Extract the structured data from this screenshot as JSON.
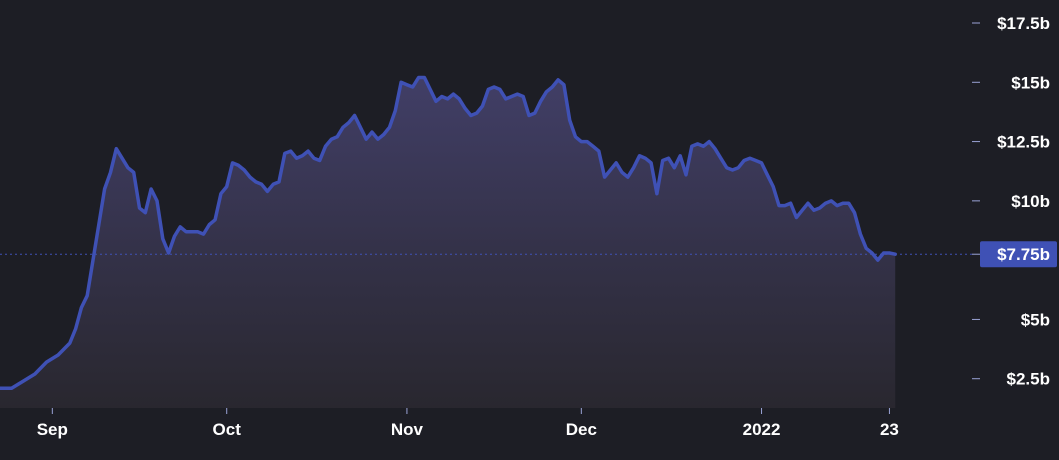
{
  "colors": {
    "background": "#1d1e25",
    "line": "#3f51b5",
    "area_top": "#43406a",
    "area_bottom": "#2a2830",
    "current_badge": "#3f51b5",
    "text": "#ffffff"
  },
  "chart_data": {
    "type": "area",
    "title": "",
    "xlabel": "",
    "ylabel": "",
    "ylim": [
      0,
      17.5
    ],
    "y_ticks": [
      {
        "value": 17.5,
        "label": "$17.5b"
      },
      {
        "value": 15,
        "label": "$15b"
      },
      {
        "value": 12.5,
        "label": "$12.5b"
      },
      {
        "value": 10,
        "label": "$10b"
      },
      {
        "value": 5,
        "label": "$5b"
      },
      {
        "value": 2.5,
        "label": "$2.5b"
      }
    ],
    "x_ticks": [
      {
        "t": 9,
        "label": "Sep"
      },
      {
        "t": 39,
        "label": "Oct"
      },
      {
        "t": 70,
        "label": "Nov"
      },
      {
        "t": 100,
        "label": "Dec"
      },
      {
        "t": 131,
        "label": "2022"
      },
      {
        "t": 153,
        "label": "23"
      }
    ],
    "t_range": [
      0,
      166
    ],
    "current": {
      "value": 7.75,
      "label": "$7.75b"
    },
    "grid": false,
    "legend": "none",
    "series": [
      {
        "points": [
          [
            0,
            2.1
          ],
          [
            2,
            2.1
          ],
          [
            4,
            2.4
          ],
          [
            6,
            2.7
          ],
          [
            8,
            3.2
          ],
          [
            10,
            3.5
          ],
          [
            12,
            4.0
          ],
          [
            13,
            4.6
          ],
          [
            14,
            5.5
          ],
          [
            15,
            6.0
          ],
          [
            16,
            7.5
          ],
          [
            17,
            9.0
          ],
          [
            18,
            10.5
          ],
          [
            19,
            11.2
          ],
          [
            20,
            12.2
          ],
          [
            21,
            11.8
          ],
          [
            22,
            11.4
          ],
          [
            23,
            11.2
          ],
          [
            24,
            9.7
          ],
          [
            25,
            9.5
          ],
          [
            26,
            10.5
          ],
          [
            27,
            10.0
          ],
          [
            28,
            8.4
          ],
          [
            29,
            7.8
          ],
          [
            30,
            8.5
          ],
          [
            31,
            8.9
          ],
          [
            32,
            8.7
          ],
          [
            33,
            8.7
          ],
          [
            34,
            8.7
          ],
          [
            35,
            8.6
          ],
          [
            36,
            9.0
          ],
          [
            37,
            9.2
          ],
          [
            38,
            10.3
          ],
          [
            39,
            10.6
          ],
          [
            40,
            11.6
          ],
          [
            41,
            11.5
          ],
          [
            42,
            11.3
          ],
          [
            43,
            11.0
          ],
          [
            44,
            10.8
          ],
          [
            45,
            10.7
          ],
          [
            46,
            10.4
          ],
          [
            47,
            10.7
          ],
          [
            48,
            10.8
          ],
          [
            49,
            12.0
          ],
          [
            50,
            12.1
          ],
          [
            51,
            11.8
          ],
          [
            52,
            11.9
          ],
          [
            53,
            12.1
          ],
          [
            54,
            11.8
          ],
          [
            55,
            11.7
          ],
          [
            56,
            12.3
          ],
          [
            57,
            12.6
          ],
          [
            58,
            12.7
          ],
          [
            59,
            13.1
          ],
          [
            60,
            13.3
          ],
          [
            61,
            13.6
          ],
          [
            62,
            13.1
          ],
          [
            63,
            12.6
          ],
          [
            64,
            12.9
          ],
          [
            65,
            12.6
          ],
          [
            66,
            12.8
          ],
          [
            67,
            13.1
          ],
          [
            68,
            13.8
          ],
          [
            69,
            15.0
          ],
          [
            70,
            14.9
          ],
          [
            71,
            14.8
          ],
          [
            72,
            15.2
          ],
          [
            73,
            15.2
          ],
          [
            74,
            14.7
          ],
          [
            75,
            14.2
          ],
          [
            76,
            14.4
          ],
          [
            77,
            14.3
          ],
          [
            78,
            14.5
          ],
          [
            79,
            14.3
          ],
          [
            80,
            13.9
          ],
          [
            81,
            13.6
          ],
          [
            82,
            13.7
          ],
          [
            83,
            14.0
          ],
          [
            84,
            14.7
          ],
          [
            85,
            14.8
          ],
          [
            86,
            14.7
          ],
          [
            87,
            14.3
          ],
          [
            88,
            14.4
          ],
          [
            89,
            14.5
          ],
          [
            90,
            14.4
          ],
          [
            91,
            13.6
          ],
          [
            92,
            13.7
          ],
          [
            93,
            14.2
          ],
          [
            94,
            14.6
          ],
          [
            95,
            14.8
          ],
          [
            96,
            15.1
          ],
          [
            97,
            14.9
          ],
          [
            98,
            13.4
          ],
          [
            99,
            12.7
          ],
          [
            100,
            12.5
          ],
          [
            101,
            12.5
          ],
          [
            102,
            12.3
          ],
          [
            103,
            12.1
          ],
          [
            104,
            11.0
          ],
          [
            105,
            11.3
          ],
          [
            106,
            11.6
          ],
          [
            107,
            11.2
          ],
          [
            108,
            11.0
          ],
          [
            109,
            11.4
          ],
          [
            110,
            11.9
          ],
          [
            111,
            11.8
          ],
          [
            112,
            11.6
          ],
          [
            113,
            10.3
          ],
          [
            114,
            11.7
          ],
          [
            115,
            11.8
          ],
          [
            116,
            11.4
          ],
          [
            117,
            11.9
          ],
          [
            118,
            11.1
          ],
          [
            119,
            12.3
          ],
          [
            120,
            12.4
          ],
          [
            121,
            12.3
          ],
          [
            122,
            12.5
          ],
          [
            123,
            12.2
          ],
          [
            124,
            11.8
          ],
          [
            125,
            11.4
          ],
          [
            126,
            11.3
          ],
          [
            127,
            11.4
          ],
          [
            128,
            11.7
          ],
          [
            129,
            11.8
          ],
          [
            130,
            11.7
          ],
          [
            131,
            11.6
          ],
          [
            132,
            11.1
          ],
          [
            133,
            10.6
          ],
          [
            134,
            9.8
          ],
          [
            135,
            9.8
          ],
          [
            136,
            9.9
          ],
          [
            137,
            9.3
          ],
          [
            138,
            9.6
          ],
          [
            139,
            9.9
          ],
          [
            140,
            9.6
          ],
          [
            141,
            9.7
          ],
          [
            142,
            9.9
          ],
          [
            143,
            10.0
          ],
          [
            144,
            9.8
          ],
          [
            145,
            9.9
          ],
          [
            146,
            9.9
          ],
          [
            147,
            9.5
          ],
          [
            148,
            8.6
          ],
          [
            149,
            8.0
          ],
          [
            150,
            7.8
          ],
          [
            151,
            7.5
          ],
          [
            152,
            7.8
          ],
          [
            153,
            7.8
          ],
          [
            154,
            7.75
          ]
        ]
      }
    ]
  }
}
